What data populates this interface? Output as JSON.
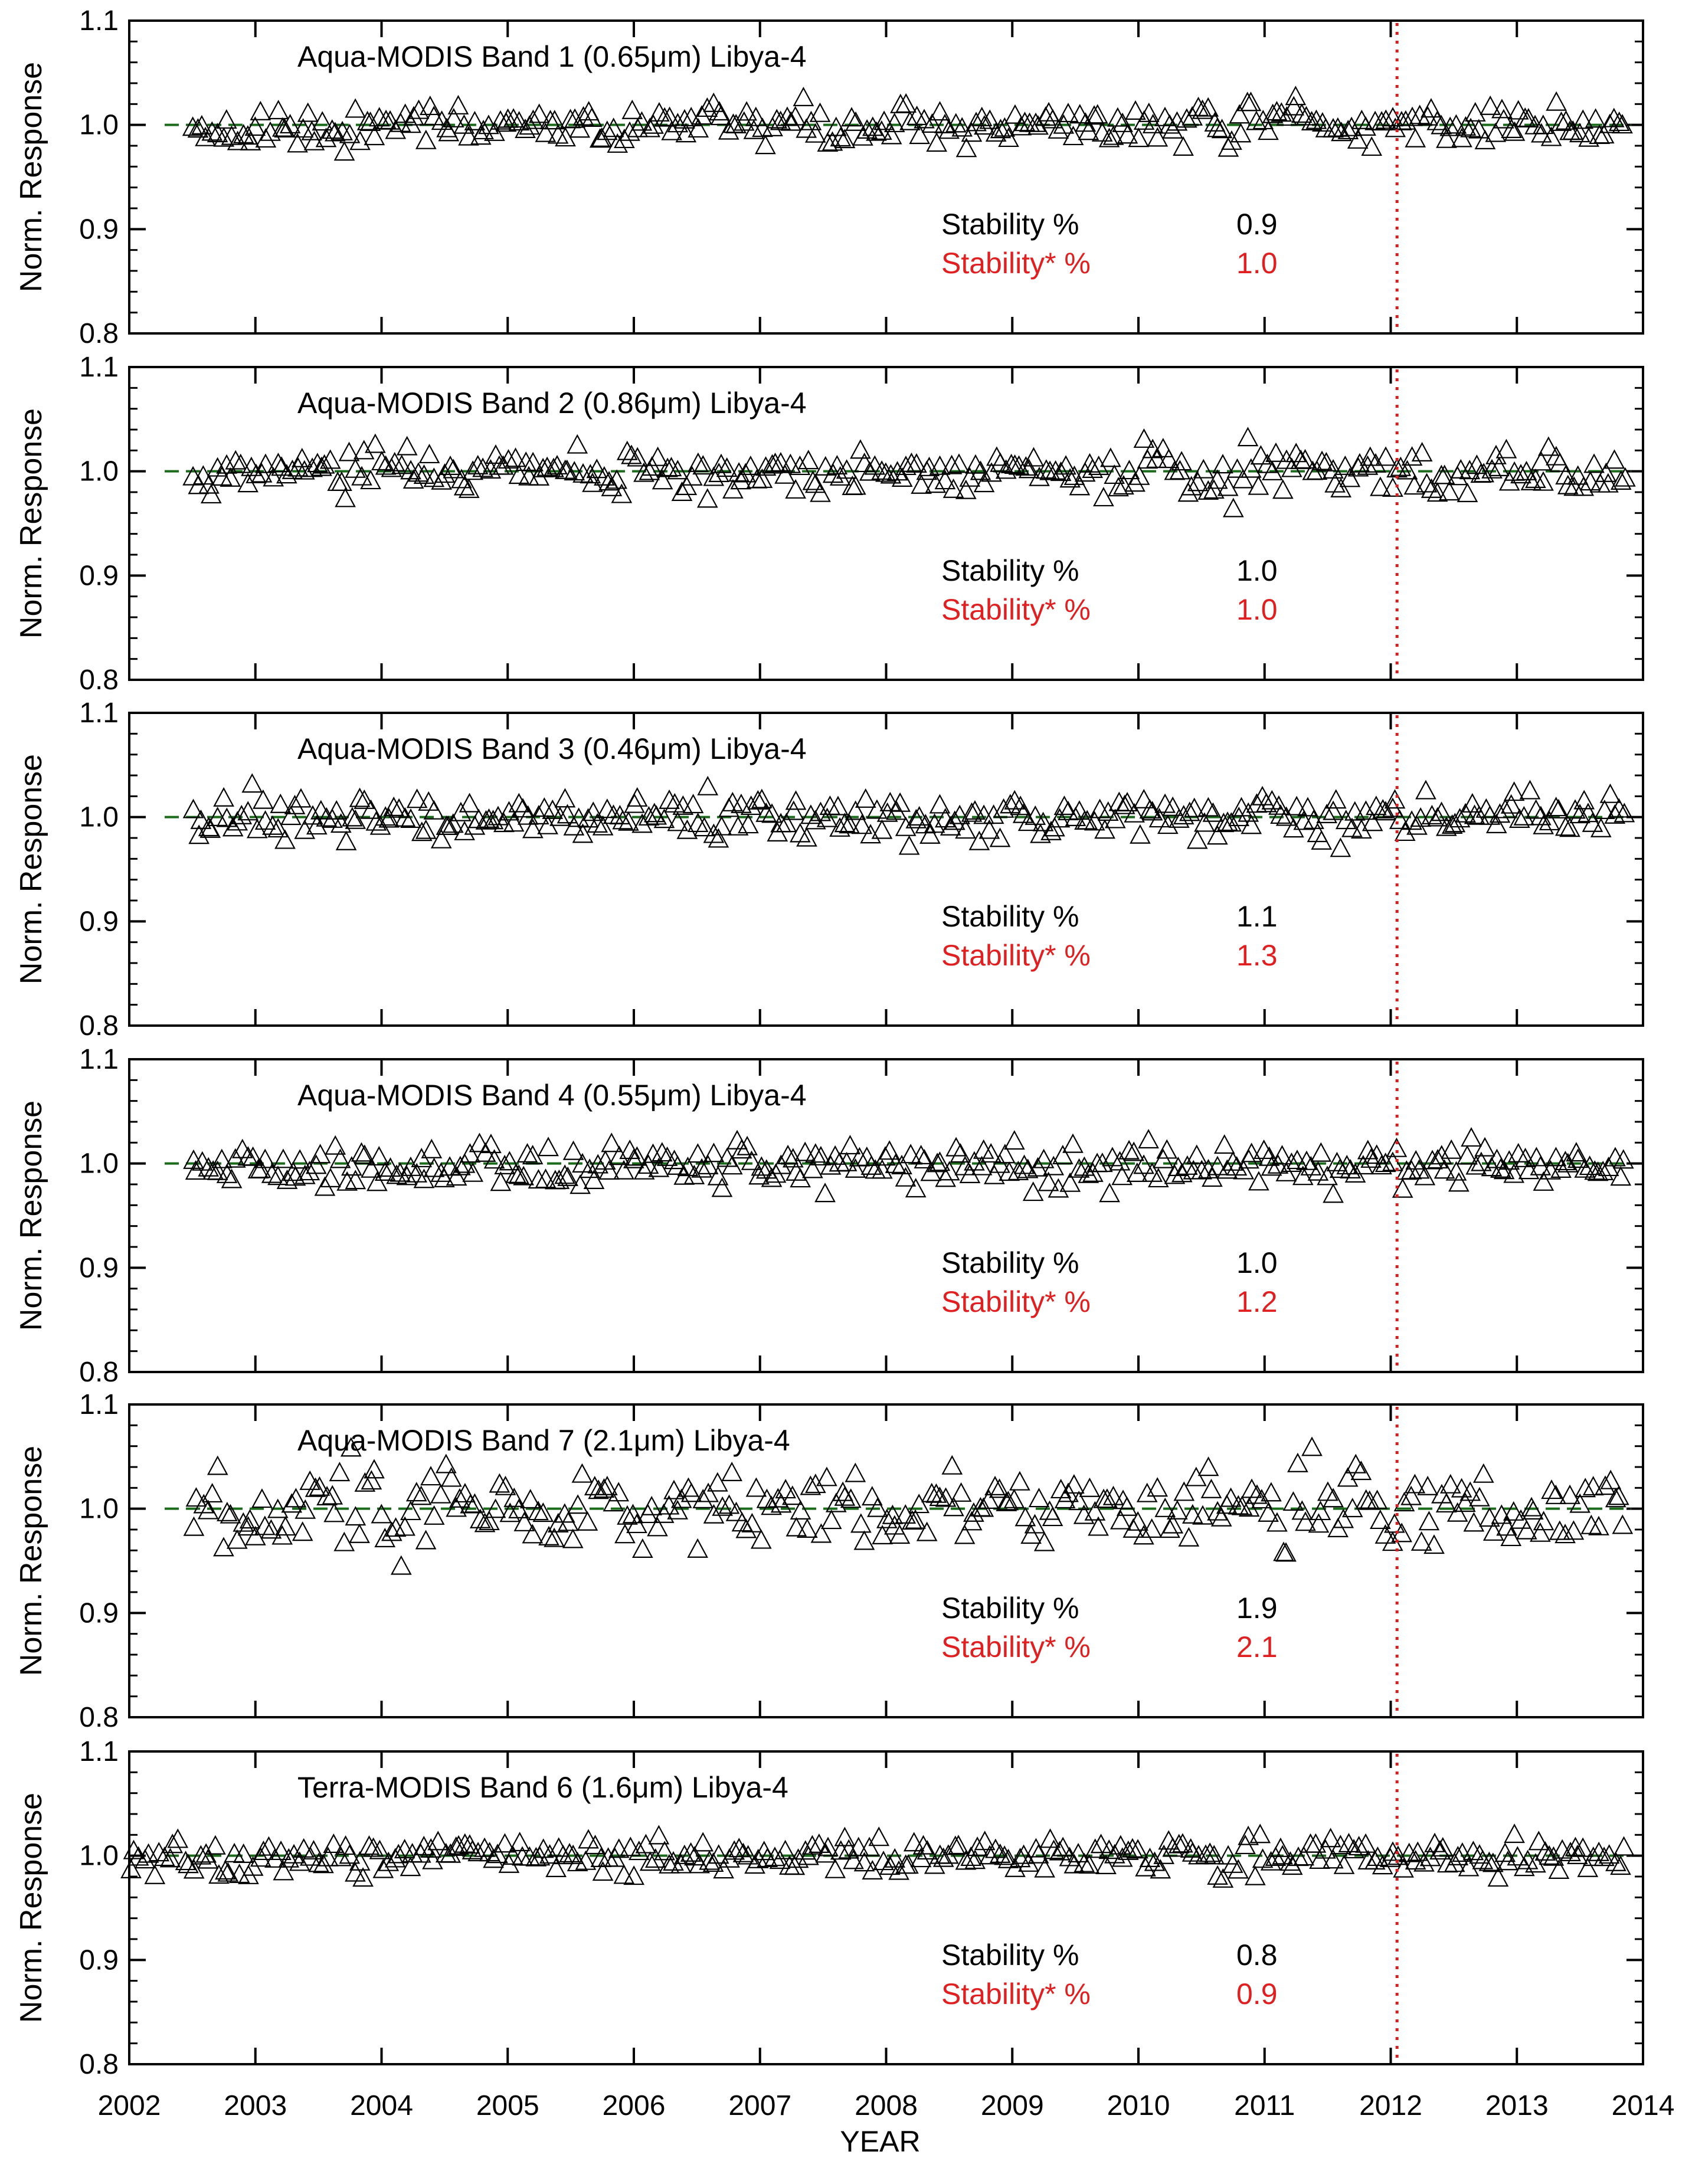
{
  "colors": {
    "axis": "#000000",
    "marker": "#000000",
    "reference": "#1a6b1a",
    "marker_line": "#d62020",
    "stability_label": "#000000",
    "stability_star_label": "#e02020"
  },
  "x_axis": {
    "label": "YEAR",
    "range": [
      2002,
      2014
    ],
    "ticks": [
      "2002",
      "2003",
      "2004",
      "2005",
      "2006",
      "2007",
      "2008",
      "2009",
      "2010",
      "2011",
      "2012",
      "2013",
      "2014"
    ]
  },
  "stability_label": "Stability %",
  "stability_star_label": "Stability* %",
  "chart_data": [
    {
      "type": "scatter",
      "title": "Aqua-MODIS Band 1 (0.65μm) Libya-4",
      "ylabel": "Norm. Response",
      "xlim": [
        2002,
        2014
      ],
      "ylim": [
        0.8,
        1.1
      ],
      "yticks": [
        "0.8",
        "0.9",
        "1.0",
        "1.1"
      ],
      "reference_y": 1.0,
      "vertical_marker_x": 2012.05,
      "stability": "0.9",
      "stability_star": "1.0",
      "series": [
        {
          "x_start": 2002.5,
          "x_end": 2013.85,
          "n_points": 290,
          "mean": 1.0,
          "spread": 0.009,
          "marker": "open-triangle"
        }
      ]
    },
    {
      "type": "scatter",
      "title": "Aqua-MODIS Band 2 (0.86μm) Libya-4",
      "ylabel": "Norm. Response",
      "xlim": [
        2002,
        2014
      ],
      "ylim": [
        0.8,
        1.1
      ],
      "yticks": [
        "0.8",
        "0.9",
        "1.0",
        "1.1"
      ],
      "reference_y": 1.0,
      "vertical_marker_x": 2012.05,
      "stability": "1.0",
      "stability_star": "1.0",
      "series": [
        {
          "x_start": 2002.5,
          "x_end": 2013.85,
          "n_points": 290,
          "mean": 1.0,
          "spread": 0.01,
          "marker": "open-triangle"
        }
      ]
    },
    {
      "type": "scatter",
      "title": "Aqua-MODIS Band 3 (0.46μm) Libya-4",
      "ylabel": "Norm. Response",
      "xlim": [
        2002,
        2014
      ],
      "ylim": [
        0.8,
        1.1
      ],
      "yticks": [
        "0.8",
        "0.9",
        "1.0",
        "1.1"
      ],
      "reference_y": 1.0,
      "vertical_marker_x": 2012.05,
      "stability": "1.1",
      "stability_star": "1.3",
      "series": [
        {
          "x_start": 2002.5,
          "x_end": 2013.85,
          "n_points": 290,
          "mean": 1.0,
          "spread": 0.011,
          "marker": "open-triangle"
        }
      ]
    },
    {
      "type": "scatter",
      "title": "Aqua-MODIS Band 4 (0.55μm) Libya-4",
      "ylabel": "Norm. Response",
      "xlim": [
        2002,
        2014
      ],
      "ylim": [
        0.8,
        1.1
      ],
      "yticks": [
        "0.8",
        "0.9",
        "1.0",
        "1.1"
      ],
      "reference_y": 1.0,
      "vertical_marker_x": 2012.05,
      "stability": "1.0",
      "stability_star": "1.2",
      "series": [
        {
          "x_start": 2002.5,
          "x_end": 2013.85,
          "n_points": 290,
          "mean": 1.0,
          "spread": 0.01,
          "marker": "open-triangle"
        }
      ]
    },
    {
      "type": "scatter",
      "title": "Aqua-MODIS Band 7 (2.1μm) Libya-4",
      "ylabel": "Norm. Response",
      "xlim": [
        2002,
        2014
      ],
      "ylim": [
        0.8,
        1.1
      ],
      "yticks": [
        "0.8",
        "0.9",
        "1.0",
        "1.1"
      ],
      "reference_y": 1.0,
      "vertical_marker_x": 2012.05,
      "stability": "1.9",
      "stability_star": "2.1",
      "series": [
        {
          "x_start": 2002.5,
          "x_end": 2013.85,
          "n_points": 290,
          "mean": 1.0,
          "spread": 0.019,
          "marker": "open-triangle"
        }
      ]
    },
    {
      "type": "scatter",
      "title": "Terra-MODIS Band 6 (1.6μm) Libya-4",
      "ylabel": "Norm. Response",
      "xlim": [
        2002,
        2014
      ],
      "ylim": [
        0.8,
        1.1
      ],
      "yticks": [
        "0.8",
        "0.9",
        "1.0",
        "1.1"
      ],
      "reference_y": 1.0,
      "vertical_marker_x": 2012.05,
      "stability": "0.8",
      "stability_star": "0.9",
      "series": [
        {
          "x_start": 2002.0,
          "x_end": 2013.85,
          "n_points": 300,
          "mean": 1.0,
          "spread": 0.008,
          "marker": "open-triangle"
        }
      ]
    }
  ]
}
